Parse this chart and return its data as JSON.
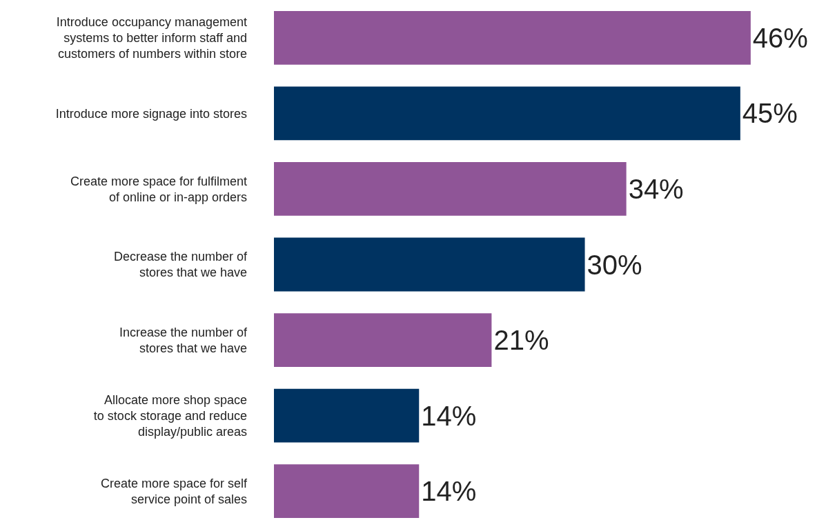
{
  "chart_data": {
    "type": "bar",
    "orientation": "horizontal",
    "categories": [
      "Introduce occupancy management\nsystems to better inform staff and\ncustomers of numbers within store",
      "Introduce more signage into stores",
      "Create more space for fulfilment\nof online or in-app orders",
      "Decrease the number of\nstores that we have",
      "Increase the number of\nstores that we have",
      "Allocate more shop space\nto stock storage and reduce\ndisplay/public areas",
      "Create more space for self\nservice point of sales"
    ],
    "values": [
      46,
      45,
      34,
      30,
      21,
      14,
      14
    ],
    "colors": [
      "#8f5597",
      "#003361",
      "#8f5597",
      "#003361",
      "#8f5597",
      "#003361",
      "#8f5597"
    ],
    "value_labels": [
      "46%",
      "45%",
      "34%",
      "30%",
      "21%",
      "14%",
      "14%"
    ],
    "legend": false
  }
}
